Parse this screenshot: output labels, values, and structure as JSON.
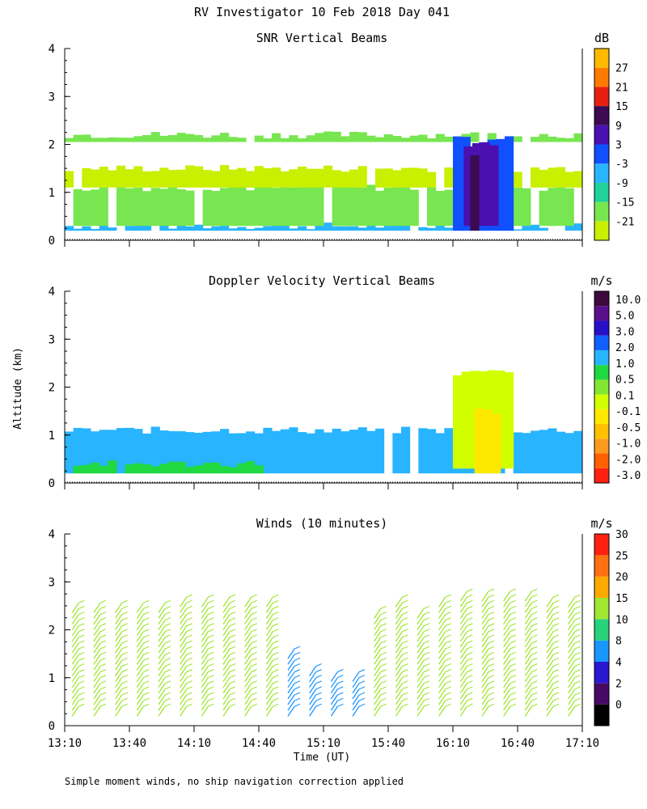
{
  "title": "RV Investigator  10 Feb 2018 Day 041",
  "shared_ylabel": "Altitude (km)",
  "xlabel": "Time (UT)",
  "footnote": "Simple moment winds, no ship navigation correction applied",
  "colors": {
    "snr": [
      "#c8f000",
      "#78e650",
      "#20d29a",
      "#28b4ff",
      "#1050ff",
      "#4a10b0",
      "#3c0a50",
      "#e62010",
      "#ff7a00",
      "#ffba00"
    ],
    "vel": [
      "#ff2010",
      "#ff6000",
      "#ff9a20",
      "#ffc000",
      "#ffe800",
      "#d2ff00",
      "#82e632",
      "#20d840",
      "#28b4ff",
      "#1060ff",
      "#2810c8",
      "#5a0f8c",
      "#3c0a3c"
    ],
    "winds": [
      "#000000",
      "#460a64",
      "#2a18d0",
      "#1a96ff",
      "#28d27a",
      "#a0e632",
      "#ffaa00",
      "#ff7010",
      "#ff2010"
    ]
  },
  "chart_data": [
    {
      "type": "heatmap",
      "title": "SNR Vertical Beams",
      "units": "dB",
      "x_ticks": [
        "13:10",
        "13:40",
        "14:10",
        "14:40",
        "15:10",
        "15:40",
        "16:10",
        "16:40",
        "17:10"
      ],
      "y_ticks": [
        "0",
        "1",
        "2",
        "3",
        "4"
      ],
      "ylim": [
        0,
        4
      ],
      "colorbar_labels": [
        "-21",
        "-15",
        "-9",
        "-3",
        "3",
        "9",
        "15",
        "21",
        "27"
      ],
      "bands": [
        {
          "x0": 0,
          "x1": 240,
          "y0": 0.2,
          "y1": 0.3,
          "value": -3
        },
        {
          "x0": 0,
          "x1": 240,
          "y0": 0.3,
          "y1": 1.1,
          "value": -15
        },
        {
          "x0": 0,
          "x1": 240,
          "y0": 1.1,
          "y1": 1.5,
          "value": -21
        },
        {
          "x0": 0,
          "x1": 240,
          "y0": 2.05,
          "y1": 2.2,
          "value": -15
        },
        {
          "x0": 180,
          "x1": 205,
          "y0": 0.2,
          "y1": 2.1,
          "value": 3
        },
        {
          "x0": 185,
          "x1": 200,
          "y0": 0.3,
          "y1": 2.0,
          "value": 9
        },
        {
          "x0": 188,
          "x1": 193,
          "y0": 0.2,
          "y1": 1.8,
          "value": 15
        }
      ]
    },
    {
      "type": "heatmap",
      "title": "Doppler Velocity Vertical Beams",
      "units": "m/s",
      "x_ticks": [
        "13:10",
        "13:40",
        "14:10",
        "14:40",
        "15:10",
        "15:40",
        "16:10",
        "16:40",
        "17:10"
      ],
      "y_ticks": [
        "0",
        "1",
        "2",
        "3",
        "4"
      ],
      "ylim": [
        0,
        4
      ],
      "colorbar_labels": [
        "10.0",
        "5.0",
        "3.0",
        "2.0",
        "1.0",
        "0.5",
        "0.1",
        "-0.1",
        "-0.5",
        "-1.0",
        "-2.0",
        "-3.0"
      ],
      "bands": [
        {
          "x0": 0,
          "x1": 240,
          "y0": 0.2,
          "y1": 1.1,
          "value": -0.5
        },
        {
          "x0": 0,
          "x1": 90,
          "y0": 0.2,
          "y1": 0.4,
          "value": -0.1
        },
        {
          "x0": 180,
          "x1": 205,
          "y0": 0.3,
          "y1": 2.3,
          "value": 0.5
        },
        {
          "x0": 190,
          "x1": 200,
          "y0": 0.2,
          "y1": 1.5,
          "value": 1.0
        }
      ]
    },
    {
      "type": "barbs",
      "title": "Winds (10 minutes)",
      "units": "m/s",
      "x_ticks": [
        "13:10",
        "13:40",
        "14:10",
        "14:40",
        "15:10",
        "15:40",
        "16:10",
        "16:40",
        "17:10"
      ],
      "y_ticks": [
        "0",
        "1",
        "2",
        "3",
        "4"
      ],
      "ylim": [
        0,
        4
      ],
      "xlim_minutes": [
        0,
        240
      ],
      "colorbar_labels": [
        "0",
        "2",
        "4",
        "8",
        "10",
        "15",
        "20",
        "25",
        "30"
      ],
      "columns": [
        {
          "t": 5,
          "top": 2.5,
          "speed": 15
        },
        {
          "t": 15,
          "top": 2.5,
          "speed": 15
        },
        {
          "t": 25,
          "top": 2.5,
          "speed": 15
        },
        {
          "t": 35,
          "top": 2.5,
          "speed": 15
        },
        {
          "t": 45,
          "top": 2.5,
          "speed": 15
        },
        {
          "t": 55,
          "top": 2.6,
          "speed": 15
        },
        {
          "t": 65,
          "top": 2.6,
          "speed": 15
        },
        {
          "t": 75,
          "top": 2.6,
          "speed": 15
        },
        {
          "t": 85,
          "top": 2.6,
          "speed": 15
        },
        {
          "t": 95,
          "top": 2.7,
          "speed": 12
        },
        {
          "t": 105,
          "top": 1.6,
          "speed": 8
        },
        {
          "t": 115,
          "top": 1.2,
          "speed": 6
        },
        {
          "t": 125,
          "top": 1.1,
          "speed": 6
        },
        {
          "t": 135,
          "top": 1.1,
          "speed": 8
        },
        {
          "t": 145,
          "top": 2.4,
          "speed": 13
        },
        {
          "t": 155,
          "top": 2.7,
          "speed": 15
        },
        {
          "t": 165,
          "top": 2.4,
          "speed": 12
        },
        {
          "t": 175,
          "top": 2.7,
          "speed": 15
        },
        {
          "t": 185,
          "top": 2.8,
          "speed": 15
        },
        {
          "t": 195,
          "top": 2.8,
          "speed": 15
        },
        {
          "t": 205,
          "top": 2.8,
          "speed": 15
        },
        {
          "t": 215,
          "top": 2.8,
          "speed": 15
        },
        {
          "t": 225,
          "top": 2.6,
          "speed": 14
        },
        {
          "t": 235,
          "top": 2.6,
          "speed": 12
        }
      ]
    }
  ]
}
